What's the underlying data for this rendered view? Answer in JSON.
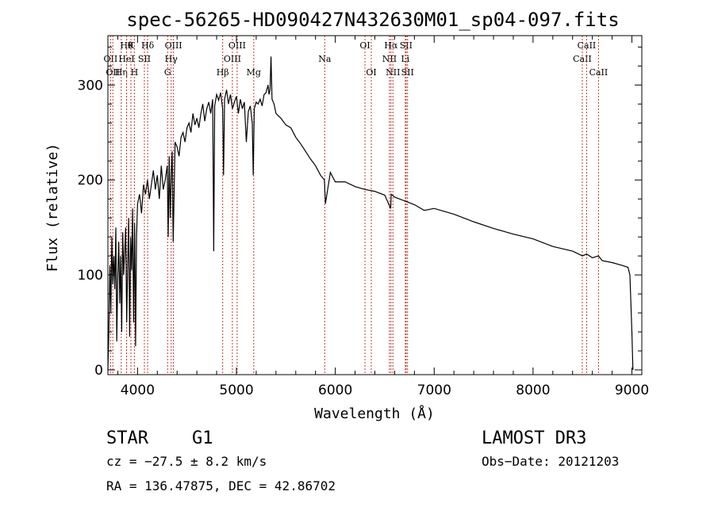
{
  "chart_data": {
    "type": "line",
    "title": "spec-56265-HD090427N432630M01_sp04-097.fits",
    "xlabel": "Wavelength (Å)",
    "ylabel": "Flux (relative)",
    "xlim": [
      3700,
      9100
    ],
    "ylim": [
      -5,
      352
    ],
    "xticks": [
      4000,
      5000,
      6000,
      7000,
      8000,
      9000
    ],
    "yticks": [
      0,
      100,
      200,
      300
    ],
    "minor_x_step": 200,
    "minor_y_step": 20,
    "grid": false,
    "series": [
      {
        "name": "flux",
        "color": "#000000",
        "x": [
          3700,
          3710,
          3720,
          3730,
          3740,
          3750,
          3760,
          3770,
          3780,
          3790,
          3800,
          3810,
          3820,
          3830,
          3840,
          3850,
          3860,
          3870,
          3880,
          3890,
          3900,
          3910,
          3920,
          3930,
          3940,
          3950,
          3960,
          3970,
          3980,
          3990,
          4000,
          4020,
          4040,
          4060,
          4080,
          4100,
          4120,
          4140,
          4160,
          4180,
          4200,
          4220,
          4240,
          4260,
          4280,
          4300,
          4310,
          4320,
          4330,
          4340,
          4350,
          4360,
          4380,
          4400,
          4420,
          4440,
          4460,
          4480,
          4500,
          4520,
          4540,
          4560,
          4580,
          4600,
          4620,
          4640,
          4660,
          4680,
          4700,
          4720,
          4740,
          4760,
          4770,
          4780,
          4800,
          4820,
          4840,
          4860,
          4870,
          4880,
          4900,
          4920,
          4940,
          4960,
          4980,
          5000,
          5020,
          5040,
          5060,
          5080,
          5100,
          5120,
          5140,
          5160,
          5170,
          5180,
          5200,
          5220,
          5240,
          5260,
          5280,
          5300,
          5320,
          5330,
          5340,
          5350,
          5360,
          5380,
          5400,
          5450,
          5500,
          5550,
          5600,
          5650,
          5700,
          5750,
          5800,
          5850,
          5890,
          5900,
          5950,
          6000,
          6100,
          6200,
          6300,
          6400,
          6500,
          6560,
          6565,
          6600,
          6700,
          6800,
          6900,
          7000,
          7200,
          7400,
          7600,
          7800,
          8000,
          8200,
          8400,
          8500,
          8542,
          8600,
          8662,
          8700,
          8800,
          8900,
          8960,
          8980,
          9000,
          9010
        ],
        "y": [
          0,
          40,
          110,
          60,
          140,
          90,
          120,
          85,
          150,
          30,
          100,
          135,
          70,
          120,
          40,
          145,
          100,
          125,
          150,
          50,
          110,
          160,
          35,
          140,
          105,
          170,
          50,
          155,
          25,
          140,
          175,
          185,
          165,
          195,
          185,
          200,
          180,
          195,
          210,
          190,
          205,
          180,
          215,
          190,
          200,
          215,
          140,
          225,
          160,
          205,
          230,
          135,
          240,
          235,
          225,
          245,
          250,
          240,
          255,
          260,
          250,
          270,
          258,
          265,
          255,
          270,
          280,
          262,
          275,
          282,
          270,
          285,
          125,
          278,
          290,
          284,
          292,
          275,
          205,
          285,
          295,
          280,
          290,
          275,
          282,
          288,
          270,
          285,
          275,
          282,
          240,
          272,
          278,
          260,
          205,
          275,
          282,
          280,
          285,
          278,
          290,
          292,
          300,
          290,
          295,
          330,
          285,
          280,
          270,
          265,
          258,
          255,
          245,
          238,
          230,
          222,
          215,
          205,
          200,
          175,
          208,
          198,
          198,
          193,
          190,
          188,
          184,
          170,
          185,
          182,
          178,
          174,
          168,
          170,
          164,
          156,
          149,
          143,
          138,
          130,
          125,
          120,
          122,
          118,
          120,
          115,
          113,
          110,
          108,
          100,
          40,
          0
        ]
      }
    ],
    "line_markers": [
      {
        "wl": 3727,
        "label": "OII",
        "row": 2
      },
      {
        "wl": 3750,
        "label": "OII",
        "row": 3
      },
      {
        "wl": 3835,
        "label": "Hη",
        "row": 3
      },
      {
        "wl": 3889,
        "label": "Hθ",
        "row": 1
      },
      {
        "wl": 3889,
        "label": "HeI",
        "row": 2
      },
      {
        "wl": 3933,
        "label": "K",
        "row": 1
      },
      {
        "wl": 3968,
        "label": "H",
        "row": 3
      },
      {
        "wl": 4069,
        "label": "SII",
        "row": 2
      },
      {
        "wl": 4102,
        "label": "Hδ",
        "row": 1
      },
      {
        "wl": 4304,
        "label": "G",
        "row": 3
      },
      {
        "wl": 4340,
        "label": "Hγ",
        "row": 2
      },
      {
        "wl": 4363,
        "label": "OIII",
        "row": 1
      },
      {
        "wl": 4861,
        "label": "Hβ",
        "row": 3
      },
      {
        "wl": 4959,
        "label": "OIII",
        "row": 2
      },
      {
        "wl": 5007,
        "label": "OIII",
        "row": 1
      },
      {
        "wl": 5175,
        "label": "Mg",
        "row": 3
      },
      {
        "wl": 5893,
        "label": "Na",
        "row": 2
      },
      {
        "wl": 6300,
        "label": "OI",
        "row": 1
      },
      {
        "wl": 6364,
        "label": "OI",
        "row": 3
      },
      {
        "wl": 6548,
        "label": "NII",
        "row": 2
      },
      {
        "wl": 6563,
        "label": "Hα",
        "row": 1
      },
      {
        "wl": 6583,
        "label": "NII",
        "row": 3
      },
      {
        "wl": 6708,
        "label": "Li",
        "row": 2
      },
      {
        "wl": 6716,
        "label": "SII",
        "row": 1
      },
      {
        "wl": 6731,
        "label": "SII",
        "row": 3
      },
      {
        "wl": 8498,
        "label": "CaII",
        "row": 2
      },
      {
        "wl": 8542,
        "label": "CaII",
        "row": 1
      },
      {
        "wl": 8662,
        "label": "CaII",
        "row": 3
      }
    ],
    "marker_color": "#c0392b"
  },
  "info": {
    "class": "STAR",
    "subclass": "G1",
    "survey": "LAMOST DR3",
    "cz": "cz = −27.5 ± 8.2 km/s",
    "obs_date": "Obs−Date: 20121203",
    "radec": "RA = 136.47875, DEC =  42.86702"
  }
}
